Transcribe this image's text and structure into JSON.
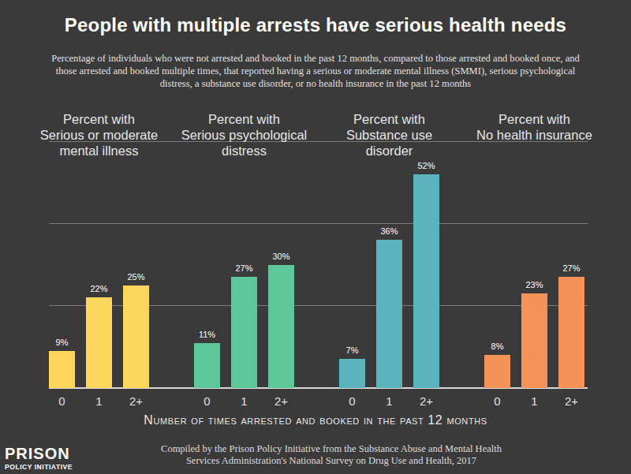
{
  "header": {
    "title": "People with multiple arrests have serious health needs",
    "subtitle": "Percentage of individuals who were not arrested and booked in the past 12 months, compared to those arrested and booked once, and those arrested and booked multiple times, that reported having a serious or moderate mental illness (SMMI), serious psychological distress, a substance use disorder, or no health insurance in the past 12 months"
  },
  "x_label": "Number of times arrested and booked in the past 12 months",
  "footer": {
    "source": "Compiled by the Prison Policy Initiative from the Substance Abuse and Mental Health Services Administration's National Survey on Drug Use and Health, 2017",
    "logo": [
      "PRISON",
      "POLICY INITIATIVE"
    ]
  },
  "chart_data": [
    {
      "type": "bar",
      "title": "Percent with\nSerious or moderate\nmental illness",
      "categories": [
        "0",
        "1",
        "2+"
      ],
      "values": [
        9,
        22,
        25
      ],
      "value_labels": [
        "9%",
        "22%",
        "25%"
      ],
      "color": "#fcd75c",
      "ylim": [
        0,
        60
      ],
      "yticks": [
        0,
        20,
        40,
        60
      ],
      "grid": true,
      "data_labels": true,
      "tick_labels": "x"
    },
    {
      "type": "bar",
      "title": "Percent with\nSerious psychological\ndistress",
      "categories": [
        "0",
        "1",
        "2+"
      ],
      "values": [
        11,
        27,
        30
      ],
      "value_labels": [
        "11%",
        "27%",
        "30%"
      ],
      "color": "#5cc799",
      "ylim": [
        0,
        60
      ],
      "yticks": [
        0,
        20,
        40,
        60
      ],
      "grid": true,
      "data_labels": true,
      "tick_labels": "x"
    },
    {
      "type": "bar",
      "title": "Percent with\nSubstance use\ndisorder",
      "categories": [
        "0",
        "1",
        "2+"
      ],
      "values": [
        7,
        36,
        52
      ],
      "value_labels": [
        "7%",
        "36%",
        "52%"
      ],
      "color": "#5bb4bc",
      "ylim": [
        0,
        60
      ],
      "yticks": [
        0,
        20,
        40,
        60
      ],
      "grid": true,
      "data_labels": true,
      "tick_labels": "x"
    },
    {
      "type": "bar",
      "title": "Percent with\nNo health insurance",
      "categories": [
        "0",
        "1",
        "2+"
      ],
      "values": [
        8,
        23,
        27
      ],
      "value_labels": [
        "8%",
        "23%",
        "27%"
      ],
      "color": "#f49257",
      "ylim": [
        0,
        60
      ],
      "yticks": [
        0,
        20,
        40,
        60
      ],
      "grid": true,
      "data_labels": true,
      "tick_labels": "x"
    }
  ]
}
